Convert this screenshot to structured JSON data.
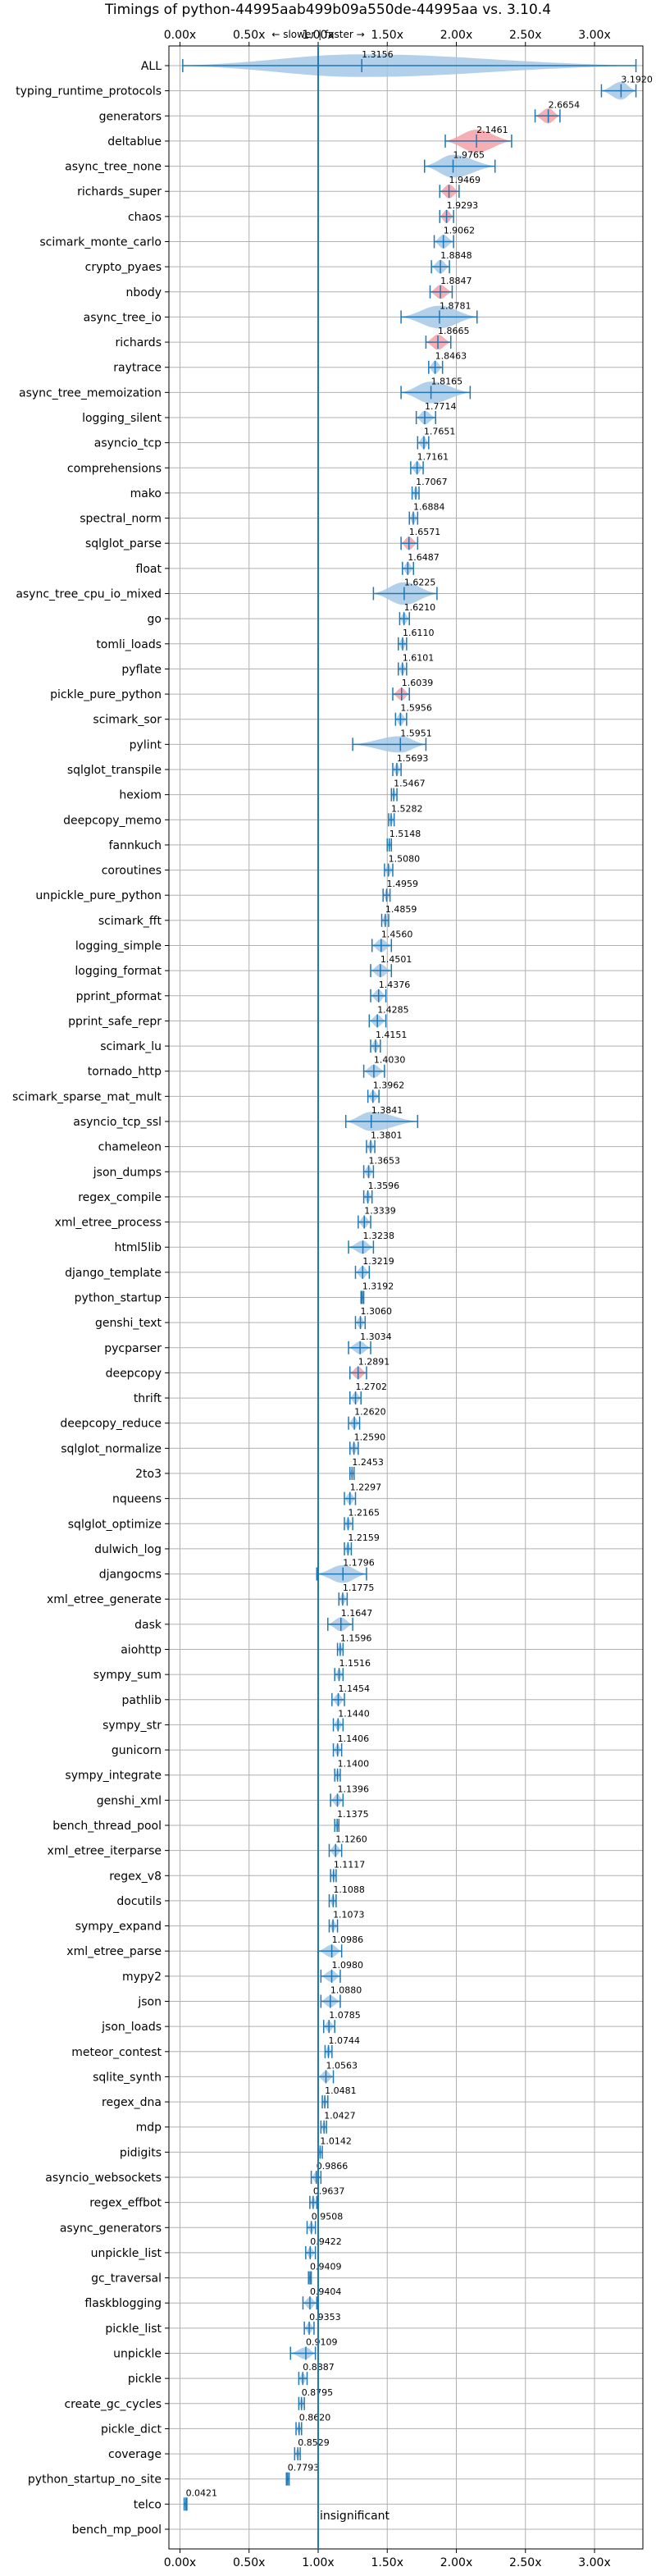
{
  "chart_data": {
    "type": "violin",
    "title": "Timings of python-44995aab499b09a550de-44995aa vs. 3.10.4",
    "direction_label": "← slower | faster →",
    "insignificant_label": "insignificant",
    "xlim": [
      -0.08,
      3.35
    ],
    "xticks": [
      0.0,
      0.5,
      1.0,
      1.5,
      2.0,
      2.5,
      3.0
    ],
    "xtick_labels": [
      "0.00x",
      "0.50x",
      "1.00x",
      "1.50x",
      "2.00x",
      "2.50x",
      "3.00x"
    ],
    "reference_line": 1.0,
    "grid": true,
    "colors": {
      "faster": "#1f77b4",
      "faster_fill": "#a6c8e6",
      "slower_fill": "#f4a0a8",
      "grid": "#b0b0b0"
    },
    "benchmarks": [
      {
        "name": "ALL",
        "value": 1.3156,
        "label": "1.3156",
        "lo": 0.02,
        "hi": 3.3,
        "spread": 0.45,
        "slower": false
      },
      {
        "name": "typing_runtime_protocols",
        "value": 3.192,
        "label": "3.1920",
        "lo": 3.05,
        "hi": 3.3,
        "spread": 0.12,
        "slower": false
      },
      {
        "name": "generators",
        "value": 2.6654,
        "label": "2.6654",
        "lo": 2.57,
        "hi": 2.75,
        "spread": 0.08,
        "slower": true
      },
      {
        "name": "deltablue",
        "value": 2.1461,
        "label": "2.1461",
        "lo": 1.92,
        "hi": 2.4,
        "spread": 0.22,
        "slower": true
      },
      {
        "name": "async_tree_none",
        "value": 1.9765,
        "label": "1.9765",
        "lo": 1.77,
        "hi": 2.28,
        "spread": 0.2,
        "slower": false
      },
      {
        "name": "richards_super",
        "value": 1.9469,
        "label": "1.9469",
        "lo": 1.88,
        "hi": 2.02,
        "spread": 0.06,
        "slower": true
      },
      {
        "name": "chaos",
        "value": 1.9293,
        "label": "1.9293",
        "lo": 1.88,
        "hi": 1.98,
        "spread": 0.05,
        "slower": true
      },
      {
        "name": "scimark_monte_carlo",
        "value": 1.9062,
        "label": "1.9062",
        "lo": 1.84,
        "hi": 1.98,
        "spread": 0.06,
        "slower": false
      },
      {
        "name": "crypto_pyaes",
        "value": 1.8848,
        "label": "1.8848",
        "lo": 1.82,
        "hi": 1.95,
        "spread": 0.06,
        "slower": false
      },
      {
        "name": "nbody",
        "value": 1.8847,
        "label": "1.8847",
        "lo": 1.81,
        "hi": 1.97,
        "spread": 0.06,
        "slower": true
      },
      {
        "name": "async_tree_io",
        "value": 1.8781,
        "label": "1.8781",
        "lo": 1.6,
        "hi": 2.15,
        "spread": 0.2,
        "slower": false
      },
      {
        "name": "richards",
        "value": 1.8665,
        "label": "1.8665",
        "lo": 1.78,
        "hi": 1.96,
        "spread": 0.08,
        "slower": true
      },
      {
        "name": "raytrace",
        "value": 1.8463,
        "label": "1.8463",
        "lo": 1.8,
        "hi": 1.9,
        "spread": 0.05,
        "slower": false
      },
      {
        "name": "async_tree_memoization",
        "value": 1.8165,
        "label": "1.8165",
        "lo": 1.6,
        "hi": 2.1,
        "spread": 0.18,
        "slower": false
      },
      {
        "name": "logging_silent",
        "value": 1.7714,
        "label": "1.7714",
        "lo": 1.71,
        "hi": 1.85,
        "spread": 0.06,
        "slower": false
      },
      {
        "name": "asyncio_tcp",
        "value": 1.7651,
        "label": "1.7651",
        "lo": 1.72,
        "hi": 1.8,
        "spread": 0.04,
        "slower": false
      },
      {
        "name": "comprehensions",
        "value": 1.7161,
        "label": "1.7161",
        "lo": 1.67,
        "hi": 1.76,
        "spread": 0.04,
        "slower": false
      },
      {
        "name": "mako",
        "value": 1.7067,
        "label": "1.7067",
        "lo": 1.68,
        "hi": 1.73,
        "spread": 0.03,
        "slower": false
      },
      {
        "name": "spectral_norm",
        "value": 1.6884,
        "label": "1.6884",
        "lo": 1.66,
        "hi": 1.72,
        "spread": 0.03,
        "slower": false
      },
      {
        "name": "sqlglot_parse",
        "value": 1.6571,
        "label": "1.6571",
        "lo": 1.6,
        "hi": 1.72,
        "spread": 0.05,
        "slower": true
      },
      {
        "name": "float",
        "value": 1.6487,
        "label": "1.6487",
        "lo": 1.61,
        "hi": 1.69,
        "spread": 0.04,
        "slower": false
      },
      {
        "name": "async_tree_cpu_io_mixed",
        "value": 1.6225,
        "label": "1.6225",
        "lo": 1.4,
        "hi": 1.86,
        "spread": 0.2,
        "slower": false
      },
      {
        "name": "go",
        "value": 1.621,
        "label": "1.6210",
        "lo": 1.59,
        "hi": 1.66,
        "spread": 0.03,
        "slower": false
      },
      {
        "name": "tomli_loads",
        "value": 1.611,
        "label": "1.6110",
        "lo": 1.58,
        "hi": 1.64,
        "spread": 0.03,
        "slower": false
      },
      {
        "name": "pyflate",
        "value": 1.6101,
        "label": "1.6101",
        "lo": 1.58,
        "hi": 1.64,
        "spread": 0.03,
        "slower": false
      },
      {
        "name": "pickle_pure_python",
        "value": 1.6039,
        "label": "1.6039",
        "lo": 1.54,
        "hi": 1.66,
        "spread": 0.04,
        "slower": true
      },
      {
        "name": "scimark_sor",
        "value": 1.5956,
        "label": "1.5956",
        "lo": 1.56,
        "hi": 1.64,
        "spread": 0.04,
        "slower": false
      },
      {
        "name": "pylint",
        "value": 1.5951,
        "label": "1.5951",
        "lo": 1.25,
        "hi": 1.78,
        "spread": 0.1,
        "slower": false
      },
      {
        "name": "sqlglot_transpile",
        "value": 1.5693,
        "label": "1.5693",
        "lo": 1.54,
        "hi": 1.6,
        "spread": 0.03,
        "slower": false
      },
      {
        "name": "hexiom",
        "value": 1.5467,
        "label": "1.5467",
        "lo": 1.53,
        "hi": 1.57,
        "spread": 0.02,
        "slower": false
      },
      {
        "name": "deepcopy_memo",
        "value": 1.5282,
        "label": "1.5282",
        "lo": 1.51,
        "hi": 1.55,
        "spread": 0.02,
        "slower": false
      },
      {
        "name": "fannkuch",
        "value": 1.5148,
        "label": "1.5148",
        "lo": 1.5,
        "hi": 1.53,
        "spread": 0.02,
        "slower": false
      },
      {
        "name": "coroutines",
        "value": 1.508,
        "label": "1.5080",
        "lo": 1.48,
        "hi": 1.54,
        "spread": 0.03,
        "slower": false
      },
      {
        "name": "unpickle_pure_python",
        "value": 1.4959,
        "label": "1.4959",
        "lo": 1.47,
        "hi": 1.52,
        "spread": 0.03,
        "slower": false
      },
      {
        "name": "scimark_fft",
        "value": 1.4859,
        "label": "1.4859",
        "lo": 1.46,
        "hi": 1.51,
        "spread": 0.03,
        "slower": false
      },
      {
        "name": "logging_simple",
        "value": 1.456,
        "label": "1.4560",
        "lo": 1.39,
        "hi": 1.53,
        "spread": 0.05,
        "slower": false
      },
      {
        "name": "logging_format",
        "value": 1.4501,
        "label": "1.4501",
        "lo": 1.38,
        "hi": 1.53,
        "spread": 0.05,
        "slower": false
      },
      {
        "name": "pprint_pformat",
        "value": 1.4376,
        "label": "1.4376",
        "lo": 1.38,
        "hi": 1.49,
        "spread": 0.04,
        "slower": false
      },
      {
        "name": "pprint_safe_repr",
        "value": 1.4285,
        "label": "1.4285",
        "lo": 1.37,
        "hi": 1.49,
        "spread": 0.04,
        "slower": false
      },
      {
        "name": "scimark_lu",
        "value": 1.4151,
        "label": "1.4151",
        "lo": 1.38,
        "hi": 1.45,
        "spread": 0.03,
        "slower": false
      },
      {
        "name": "tornado_http",
        "value": 1.403,
        "label": "1.4030",
        "lo": 1.33,
        "hi": 1.48,
        "spread": 0.05,
        "slower": false
      },
      {
        "name": "scimark_sparse_mat_mult",
        "value": 1.3962,
        "label": "1.3962",
        "lo": 1.36,
        "hi": 1.44,
        "spread": 0.03,
        "slower": false
      },
      {
        "name": "asyncio_tcp_ssl",
        "value": 1.3841,
        "label": "1.3841",
        "lo": 1.2,
        "hi": 1.72,
        "spread": 0.14,
        "slower": false
      },
      {
        "name": "chameleon",
        "value": 1.3801,
        "label": "1.3801",
        "lo": 1.35,
        "hi": 1.41,
        "spread": 0.03,
        "slower": false
      },
      {
        "name": "json_dumps",
        "value": 1.3653,
        "label": "1.3653",
        "lo": 1.33,
        "hi": 1.4,
        "spread": 0.03,
        "slower": false
      },
      {
        "name": "regex_compile",
        "value": 1.3596,
        "label": "1.3596",
        "lo": 1.33,
        "hi": 1.39,
        "spread": 0.03,
        "slower": false
      },
      {
        "name": "xml_etree_process",
        "value": 1.3339,
        "label": "1.3339",
        "lo": 1.29,
        "hi": 1.38,
        "spread": 0.03,
        "slower": false
      },
      {
        "name": "html5lib",
        "value": 1.3238,
        "label": "1.3238",
        "lo": 1.22,
        "hi": 1.4,
        "spread": 0.05,
        "slower": false
      },
      {
        "name": "django_template",
        "value": 1.3219,
        "label": "1.3219",
        "lo": 1.27,
        "hi": 1.37,
        "spread": 0.04,
        "slower": false
      },
      {
        "name": "python_startup",
        "value": 1.3192,
        "label": "1.3192",
        "lo": 1.31,
        "hi": 1.33,
        "spread": 0.015,
        "slower": false
      },
      {
        "name": "genshi_text",
        "value": 1.306,
        "label": "1.3060",
        "lo": 1.27,
        "hi": 1.34,
        "spread": 0.03,
        "slower": false
      },
      {
        "name": "pycparser",
        "value": 1.3034,
        "label": "1.3034",
        "lo": 1.22,
        "hi": 1.38,
        "spread": 0.04,
        "slower": false
      },
      {
        "name": "deepcopy",
        "value": 1.2891,
        "label": "1.2891",
        "lo": 1.23,
        "hi": 1.35,
        "spread": 0.04,
        "slower": true
      },
      {
        "name": "thrift",
        "value": 1.2702,
        "label": "1.2702",
        "lo": 1.23,
        "hi": 1.31,
        "spread": 0.03,
        "slower": false
      },
      {
        "name": "deepcopy_reduce",
        "value": 1.262,
        "label": "1.2620",
        "lo": 1.22,
        "hi": 1.3,
        "spread": 0.03,
        "slower": false
      },
      {
        "name": "sqlglot_normalize",
        "value": 1.259,
        "label": "1.2590",
        "lo": 1.23,
        "hi": 1.29,
        "spread": 0.02,
        "slower": false
      },
      {
        "name": "2to3",
        "value": 1.2453,
        "label": "1.2453",
        "lo": 1.23,
        "hi": 1.26,
        "spread": 0.02,
        "slower": false
      },
      {
        "name": "nqueens",
        "value": 1.2297,
        "label": "1.2297",
        "lo": 1.19,
        "hi": 1.27,
        "spread": 0.03,
        "slower": false
      },
      {
        "name": "sqlglot_optimize",
        "value": 1.2165,
        "label": "1.2165",
        "lo": 1.19,
        "hi": 1.25,
        "spread": 0.02,
        "slower": false
      },
      {
        "name": "dulwich_log",
        "value": 1.2159,
        "label": "1.2159",
        "lo": 1.19,
        "hi": 1.24,
        "spread": 0.02,
        "slower": false
      },
      {
        "name": "djangocms",
        "value": 1.1796,
        "label": "1.1796",
        "lo": 0.99,
        "hi": 1.35,
        "spread": 0.12,
        "slower": false
      },
      {
        "name": "xml_etree_generate",
        "value": 1.1775,
        "label": "1.1775",
        "lo": 1.15,
        "hi": 1.21,
        "spread": 0.02,
        "slower": false
      },
      {
        "name": "dask",
        "value": 1.1647,
        "label": "1.1647",
        "lo": 1.07,
        "hi": 1.25,
        "spread": 0.06,
        "slower": false
      },
      {
        "name": "aiohttp",
        "value": 1.1596,
        "label": "1.1596",
        "lo": 1.14,
        "hi": 1.18,
        "spread": 0.02,
        "slower": false
      },
      {
        "name": "sympy_sum",
        "value": 1.1516,
        "label": "1.1516",
        "lo": 1.12,
        "hi": 1.18,
        "spread": 0.02,
        "slower": false
      },
      {
        "name": "pathlib",
        "value": 1.1454,
        "label": "1.1454",
        "lo": 1.1,
        "hi": 1.19,
        "spread": 0.03,
        "slower": false
      },
      {
        "name": "sympy_str",
        "value": 1.144,
        "label": "1.1440",
        "lo": 1.11,
        "hi": 1.18,
        "spread": 0.02,
        "slower": false
      },
      {
        "name": "gunicorn",
        "value": 1.1406,
        "label": "1.1406",
        "lo": 1.11,
        "hi": 1.17,
        "spread": 0.02,
        "slower": false
      },
      {
        "name": "sympy_integrate",
        "value": 1.14,
        "label": "1.1400",
        "lo": 1.12,
        "hi": 1.16,
        "spread": 0.02,
        "slower": false
      },
      {
        "name": "genshi_xml",
        "value": 1.1396,
        "label": "1.1396",
        "lo": 1.09,
        "hi": 1.18,
        "spread": 0.03,
        "slower": false
      },
      {
        "name": "bench_thread_pool",
        "value": 1.1375,
        "label": "1.1375",
        "lo": 1.12,
        "hi": 1.15,
        "spread": 0.015,
        "slower": false
      },
      {
        "name": "xml_etree_iterparse",
        "value": 1.126,
        "label": "1.1260",
        "lo": 1.08,
        "hi": 1.17,
        "spread": 0.03,
        "slower": false
      },
      {
        "name": "regex_v8",
        "value": 1.1117,
        "label": "1.1117",
        "lo": 1.09,
        "hi": 1.13,
        "spread": 0.02,
        "slower": false
      },
      {
        "name": "docutils",
        "value": 1.1088,
        "label": "1.1088",
        "lo": 1.08,
        "hi": 1.13,
        "spread": 0.02,
        "slower": false
      },
      {
        "name": "sympy_expand",
        "value": 1.1073,
        "label": "1.1073",
        "lo": 1.08,
        "hi": 1.14,
        "spread": 0.02,
        "slower": false
      },
      {
        "name": "xml_etree_parse",
        "value": 1.0986,
        "label": "1.0986",
        "lo": 1.0,
        "hi": 1.17,
        "spread": 0.04,
        "slower": false
      },
      {
        "name": "mypy2",
        "value": 1.098,
        "label": "1.0980",
        "lo": 1.02,
        "hi": 1.16,
        "spread": 0.03,
        "slower": false
      },
      {
        "name": "json",
        "value": 1.088,
        "label": "1.0880",
        "lo": 1.02,
        "hi": 1.16,
        "spread": 0.03,
        "slower": false
      },
      {
        "name": "json_loads",
        "value": 1.0785,
        "label": "1.0785",
        "lo": 1.04,
        "hi": 1.12,
        "spread": 0.02,
        "slower": false
      },
      {
        "name": "meteor_contest",
        "value": 1.0744,
        "label": "1.0744",
        "lo": 1.05,
        "hi": 1.1,
        "spread": 0.02,
        "slower": false
      },
      {
        "name": "sqlite_synth",
        "value": 1.0563,
        "label": "1.0563",
        "lo": 1.0,
        "hi": 1.11,
        "spread": 0.03,
        "slower": false
      },
      {
        "name": "regex_dna",
        "value": 1.0481,
        "label": "1.0481",
        "lo": 1.03,
        "hi": 1.07,
        "spread": 0.015,
        "slower": false
      },
      {
        "name": "mdp",
        "value": 1.0427,
        "label": "1.0427",
        "lo": 1.02,
        "hi": 1.06,
        "spread": 0.015,
        "slower": false
      },
      {
        "name": "pidigits",
        "value": 1.0142,
        "label": "1.0142",
        "lo": 1.0,
        "hi": 1.03,
        "spread": 0.015,
        "slower": false
      },
      {
        "name": "asyncio_websockets",
        "value": 0.9866,
        "label": "0.9866",
        "lo": 0.95,
        "hi": 1.02,
        "spread": 0.02,
        "slower": false
      },
      {
        "name": "regex_effbot",
        "value": 0.9637,
        "label": "0.9637",
        "lo": 0.94,
        "hi": 0.99,
        "spread": 0.015,
        "slower": false
      },
      {
        "name": "async_generators",
        "value": 0.9508,
        "label": "0.9508",
        "lo": 0.92,
        "hi": 0.98,
        "spread": 0.02,
        "slower": false
      },
      {
        "name": "unpickle_list",
        "value": 0.9422,
        "label": "0.9422",
        "lo": 0.91,
        "hi": 0.98,
        "spread": 0.02,
        "slower": false
      },
      {
        "name": "gc_traversal",
        "value": 0.9409,
        "label": "0.9409",
        "lo": 0.93,
        "hi": 0.95,
        "spread": 0.015,
        "slower": false
      },
      {
        "name": "flaskblogging",
        "value": 0.9404,
        "label": "0.9404",
        "lo": 0.89,
        "hi": 0.99,
        "spread": 0.03,
        "slower": false
      },
      {
        "name": "pickle_list",
        "value": 0.9353,
        "label": "0.9353",
        "lo": 0.9,
        "hi": 0.97,
        "spread": 0.02,
        "slower": false
      },
      {
        "name": "unpickle",
        "value": 0.9109,
        "label": "0.9109",
        "lo": 0.8,
        "hi": 0.98,
        "spread": 0.03,
        "slower": false
      },
      {
        "name": "pickle",
        "value": 0.8887,
        "label": "0.8887",
        "lo": 0.86,
        "hi": 0.92,
        "spread": 0.02,
        "slower": false
      },
      {
        "name": "create_gc_cycles",
        "value": 0.8795,
        "label": "0.8795",
        "lo": 0.86,
        "hi": 0.9,
        "spread": 0.015,
        "slower": false
      },
      {
        "name": "pickle_dict",
        "value": 0.862,
        "label": "0.8620",
        "lo": 0.84,
        "hi": 0.88,
        "spread": 0.015,
        "slower": false
      },
      {
        "name": "coverage",
        "value": 0.8529,
        "label": "0.8529",
        "lo": 0.83,
        "hi": 0.87,
        "spread": 0.015,
        "slower": false
      },
      {
        "name": "python_startup_no_site",
        "value": 0.7793,
        "label": "0.7793",
        "lo": 0.77,
        "hi": 0.79,
        "spread": 0.012,
        "slower": false
      },
      {
        "name": "telco",
        "value": 0.0421,
        "label": "0.0421",
        "lo": 0.03,
        "hi": 0.05,
        "spread": 0.008,
        "slower": false
      },
      {
        "name": "bench_mp_pool",
        "value": null,
        "label": "",
        "lo": null,
        "hi": null,
        "spread": 0,
        "slower": false
      }
    ]
  }
}
